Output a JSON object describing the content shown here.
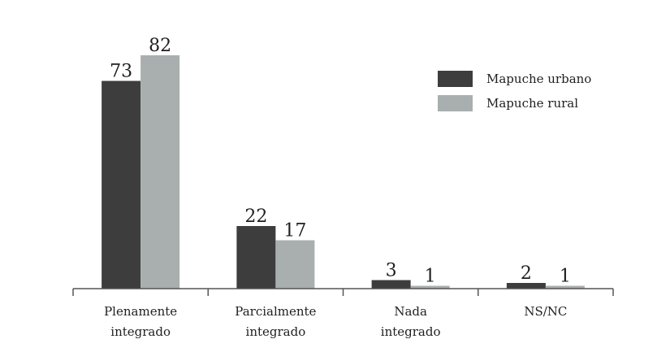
{
  "chart_data": {
    "type": "bar",
    "categories": [
      [
        "Plenamente",
        "integrado"
      ],
      [
        "Parcialmente",
        "integrado"
      ],
      [
        "Nada",
        "integrado"
      ],
      [
        "NS/NC"
      ]
    ],
    "series": [
      {
        "name": "Mapuche urbano",
        "values": [
          73,
          22,
          3,
          2
        ],
        "color": "#3d3d3d"
      },
      {
        "name": "Mapuche rural",
        "values": [
          82,
          17,
          1,
          1
        ],
        "color": "#a9afae"
      }
    ],
    "ylim": [
      0,
      82
    ],
    "legend_position": "top-right",
    "grid": false
  }
}
